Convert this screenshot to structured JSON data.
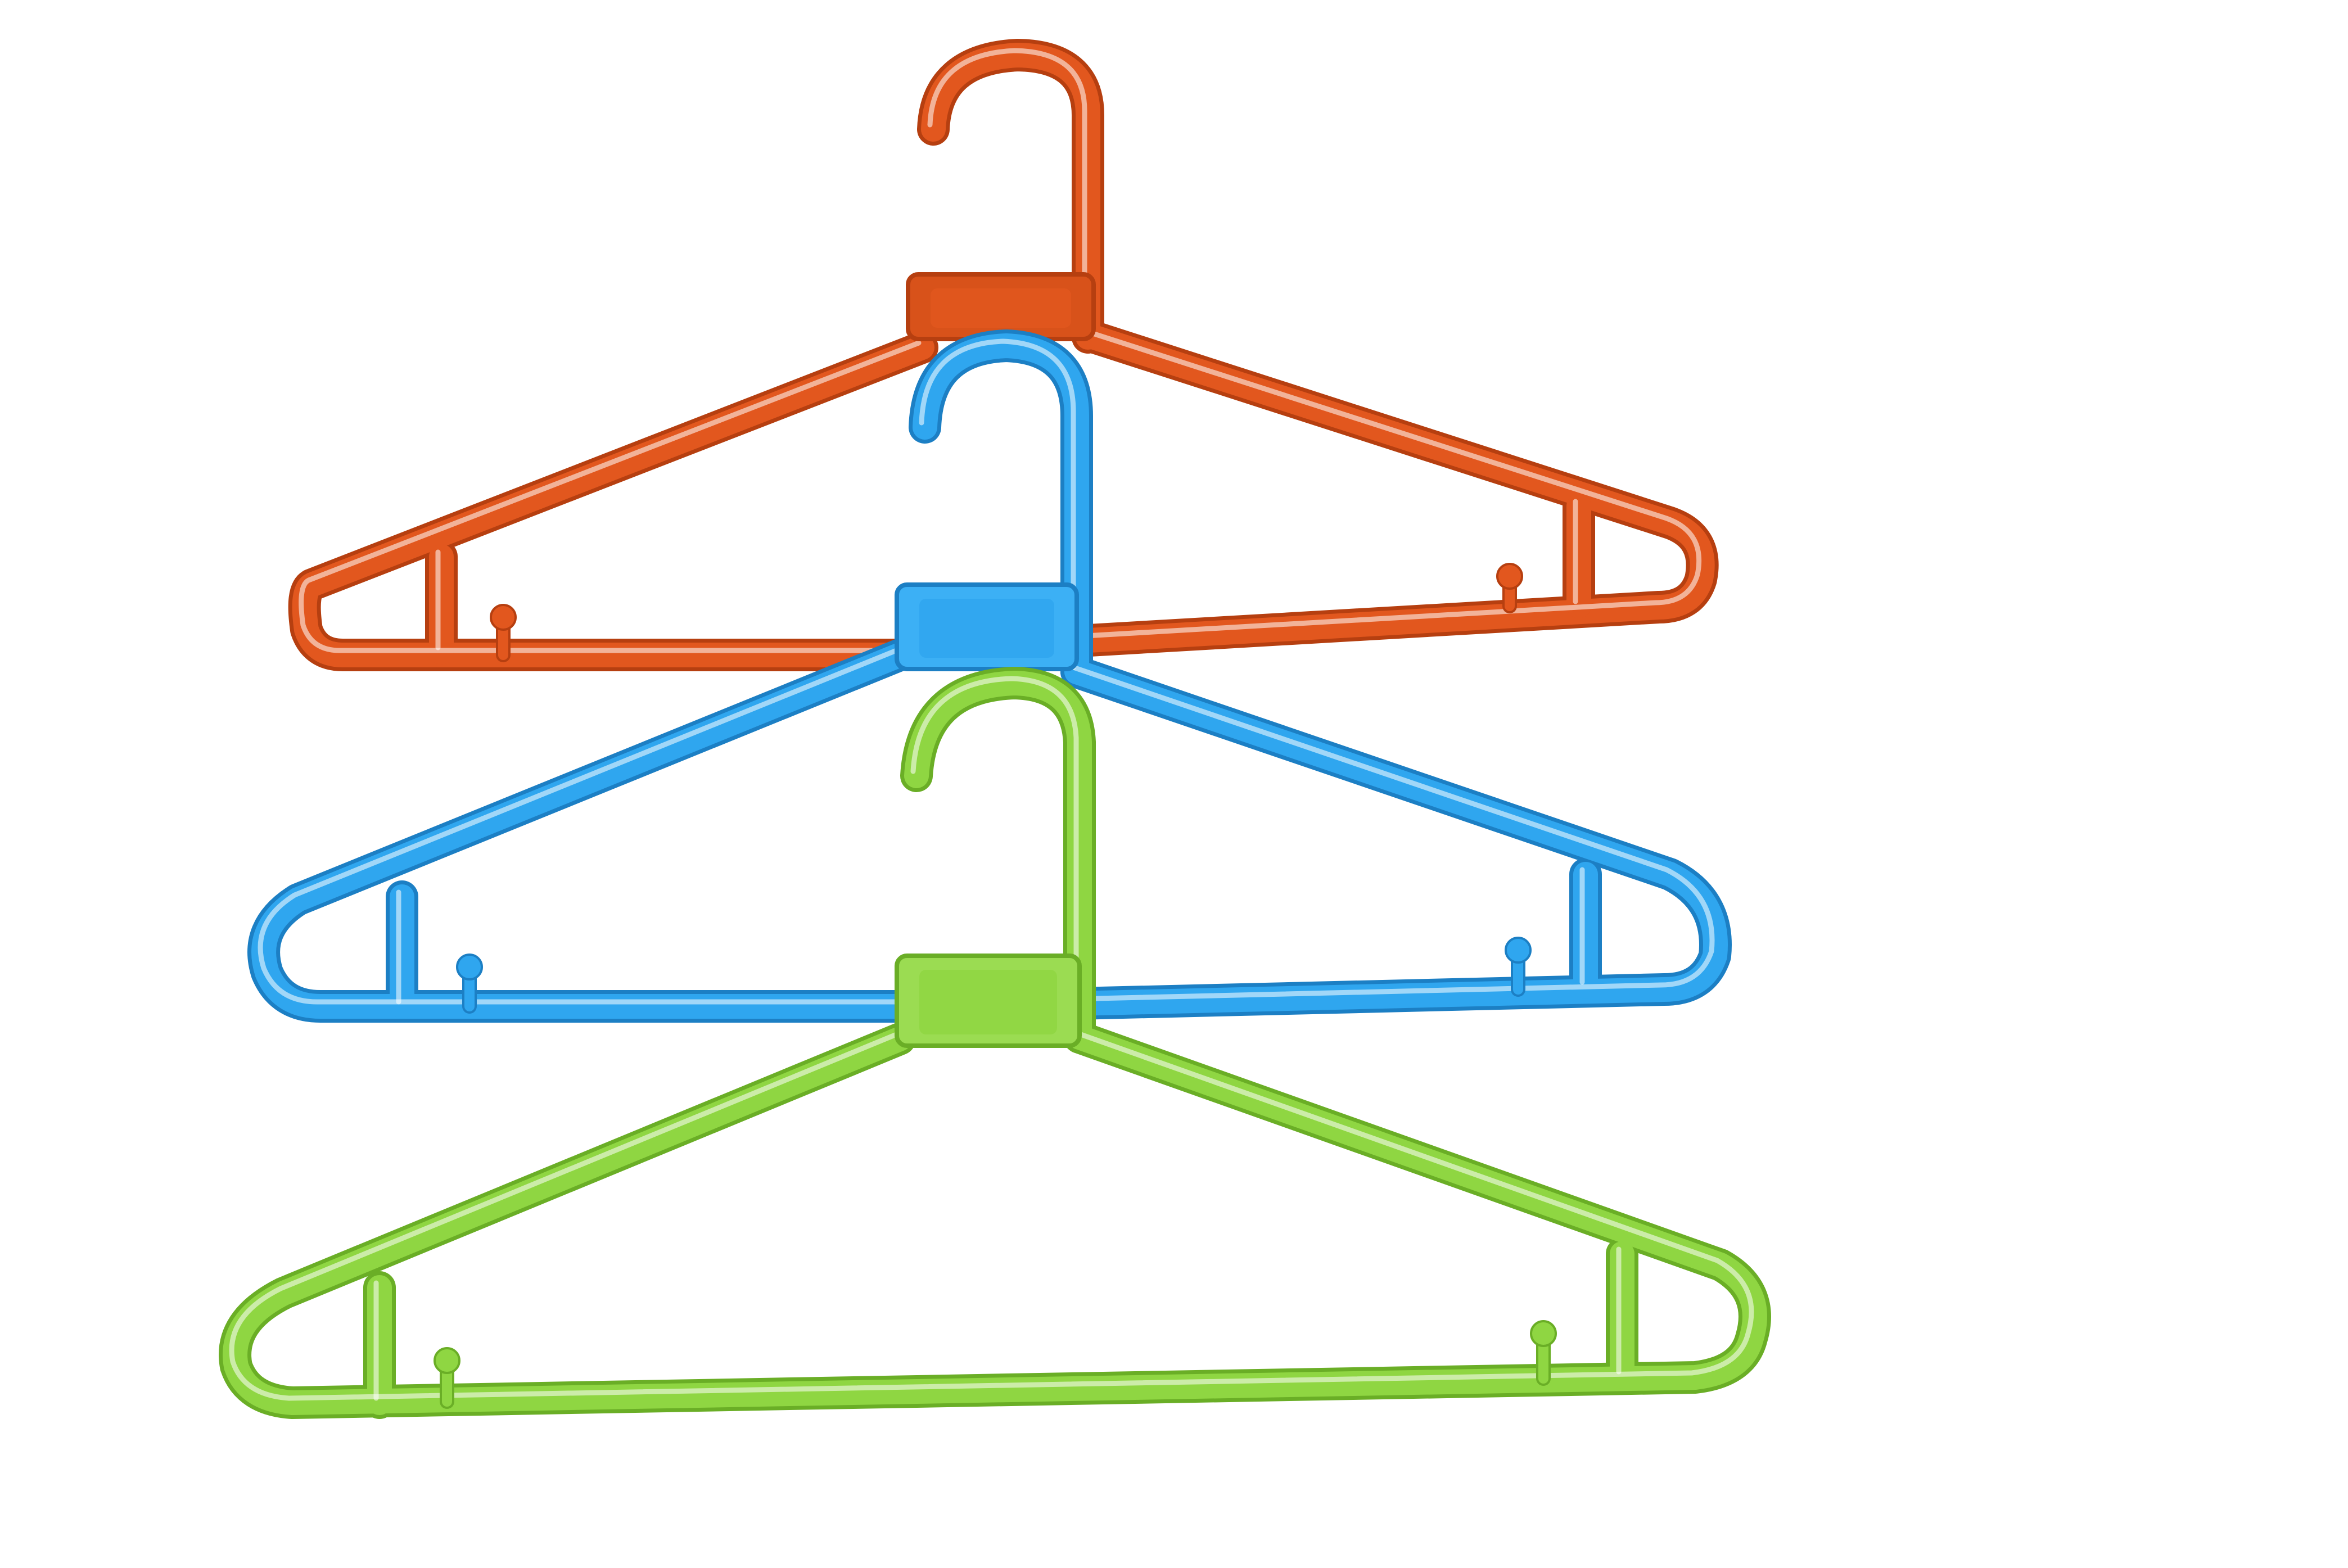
{
  "background": "#ffffff",
  "hangers": [
    {
      "id": "orange",
      "color": "#e2571e",
      "shade": "#b63f10",
      "plate": "#d8521a"
    },
    {
      "id": "blue",
      "color": "#2fa6ef",
      "shade": "#1c7fc4",
      "plate": "#3cb0f5"
    },
    {
      "id": "green",
      "color": "#8fd642",
      "shade": "#6aae26",
      "plate": "#9bdc52"
    }
  ]
}
